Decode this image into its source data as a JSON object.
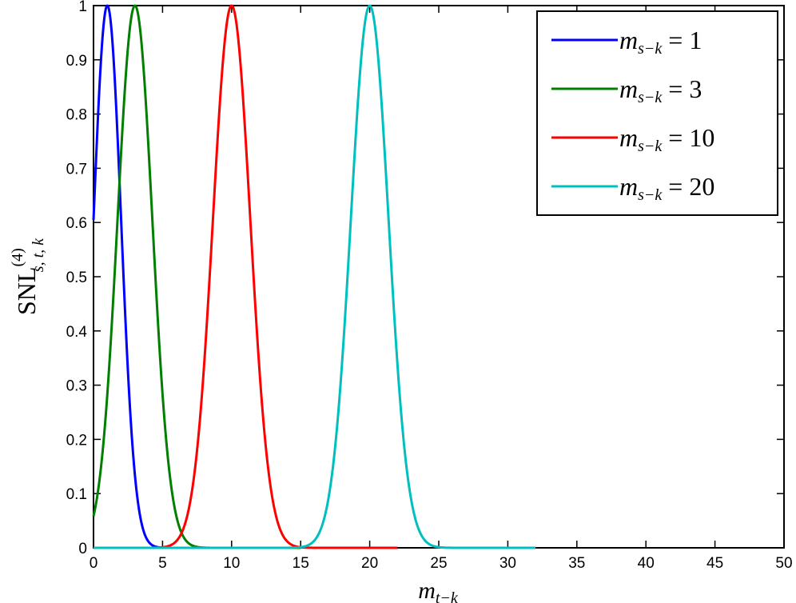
{
  "chart_data": {
    "type": "line",
    "xlabel": "m_{t−k}",
    "ylabel": "SNL_{s,t,k}^{(4)}",
    "xlim": [
      0,
      50
    ],
    "ylim": [
      0,
      1
    ],
    "xticks": [
      0,
      5,
      10,
      15,
      20,
      25,
      30,
      35,
      40,
      45,
      50
    ],
    "yticks": [
      0,
      0.1,
      0.2,
      0.3,
      0.4,
      0.5,
      0.6,
      0.7,
      0.8,
      0.9,
      1
    ],
    "grid": false,
    "legend_position": "top-right",
    "series": [
      {
        "name": "m_{s−k} = 1",
        "legend_var": "m",
        "legend_sub": "s−k",
        "legend_eq": "= 1",
        "color": "#0000ff",
        "peak_x": 1,
        "width": 1.41,
        "x_range": [
          0,
          8
        ]
      },
      {
        "name": "m_{s−k} = 3",
        "legend_var": "m",
        "legend_sub": "s−k",
        "legend_eq": "= 3",
        "color": "#007f00",
        "peak_x": 3,
        "width": 1.78,
        "x_range": [
          0,
          15
        ]
      },
      {
        "name": "m_{s−k} = 10",
        "legend_var": "m",
        "legend_sub": "s−k",
        "legend_eq": "= 10",
        "color": "#ff0000",
        "peak_x": 10,
        "width": 1.91,
        "x_range": [
          0,
          22
        ]
      },
      {
        "name": "m_{s−k} = 20",
        "legend_var": "m",
        "legend_sub": "s−k",
        "legend_eq": "= 20",
        "color": "#00bfbf",
        "peak_x": 20,
        "width": 1.93,
        "x_range": [
          0,
          32
        ]
      }
    ]
  },
  "labels": {
    "xlabel_var": "m",
    "xlabel_sub": "t−k",
    "ylabel_main": "SNL",
    "ylabel_sup": "(4)",
    "ylabel_sub": "s, t, k"
  }
}
